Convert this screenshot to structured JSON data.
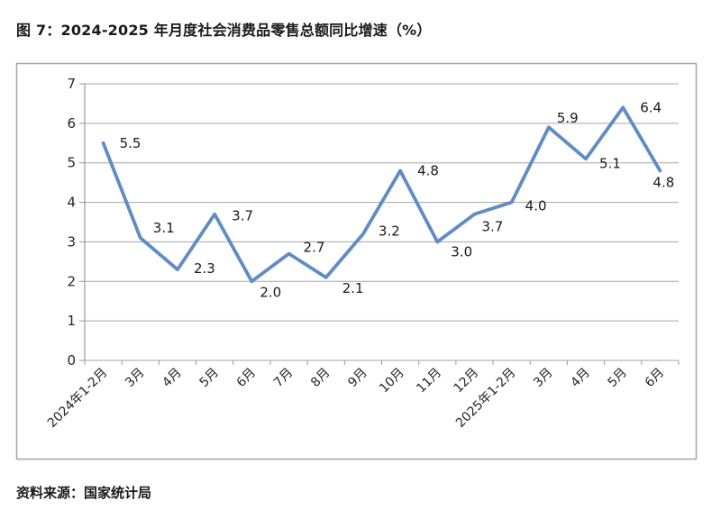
{
  "title": "图 7：2024-2025 年月度社会消费品零售总额同比增速（%）",
  "source": "资料来源：国家统计局",
  "chart_data": {
    "type": "line",
    "categories": [
      "2024年1-2月",
      "3月",
      "4月",
      "5月",
      "6月",
      "7月",
      "8月",
      "9月",
      "10月",
      "11月",
      "12月",
      "2025年1-2月",
      "3月",
      "4月",
      "5月",
      "6月"
    ],
    "values": [
      5.5,
      3.1,
      2.3,
      3.7,
      2.0,
      2.7,
      2.1,
      3.2,
      4.8,
      3.0,
      3.7,
      4.0,
      5.9,
      5.1,
      6.4,
      4.8
    ],
    "value_label_format": "one_decimal",
    "title": "",
    "xlabel": "",
    "ylabel": "",
    "ylim": [
      0,
      7
    ],
    "yticks": [
      0,
      1,
      2,
      3,
      4,
      5,
      6,
      7
    ],
    "grid": "horizontal",
    "legend": "none",
    "colors": {
      "line": "#5F8CC8",
      "grid": "#A6A6A6",
      "axis": "#9B9B9B",
      "border": "#A6A6A6",
      "data_label": "#1A1A1A",
      "axis_text": "#262626"
    }
  }
}
